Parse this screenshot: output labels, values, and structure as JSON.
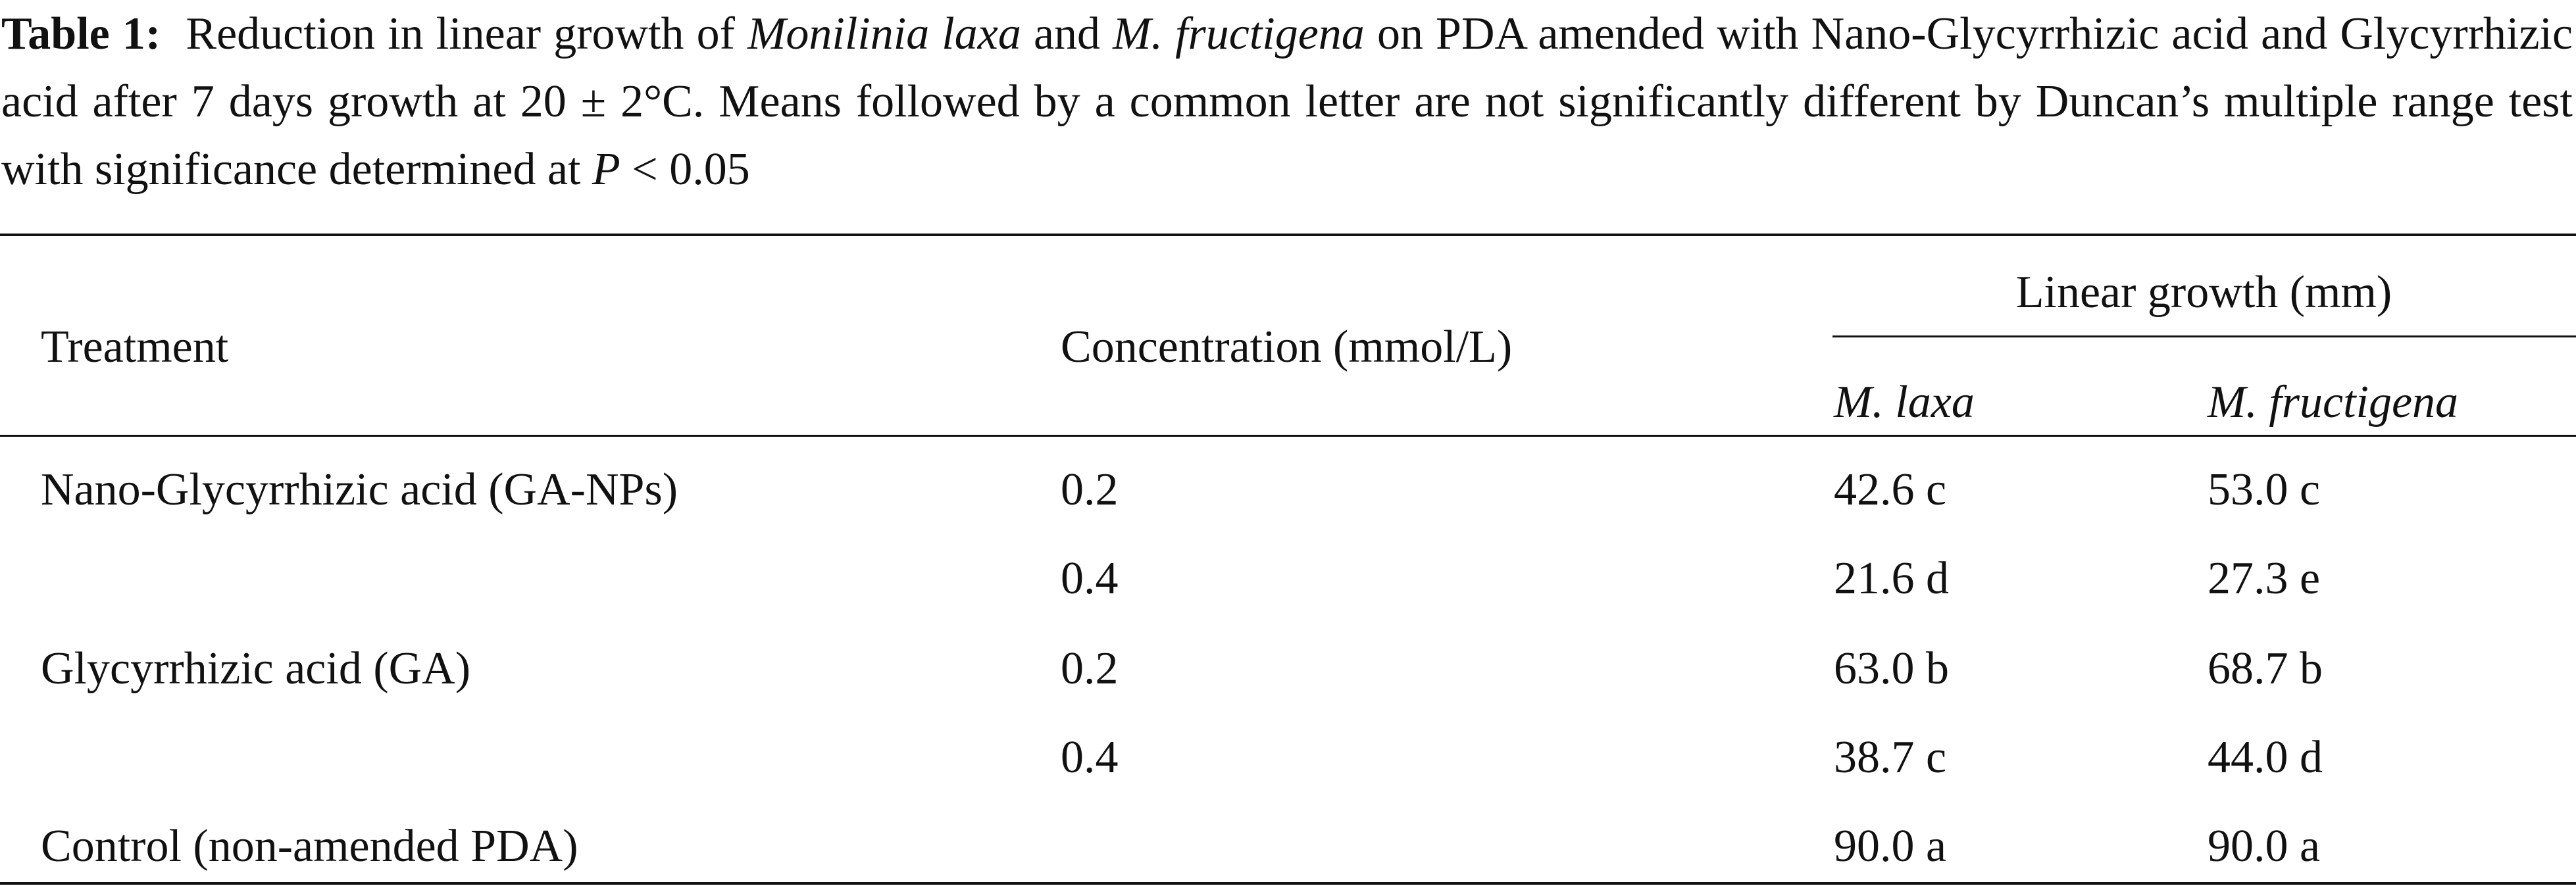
{
  "caption": {
    "label": "Table 1:",
    "parts": [
      "Reduction in linear growth of",
      "Monilinia laxa",
      "and",
      "M. fructigena",
      "on PDA amended with Nano-Glycyrrhizic acid and Glycyrrhizic acid after 7 days growth at 20 ± 2°C. Means followed by a common letter are not significantly different by Duncan’s multiple range test with significance determined at",
      "P",
      "< 0.05"
    ]
  },
  "table": {
    "header": {
      "treatment": "Treatment",
      "concentration": "Concentration (mmol/L)",
      "group": "Linear growth (mm)",
      "laxa": "M. laxa",
      "fructigena": "M. fructigena"
    },
    "rows": [
      {
        "treatment": "Nano-Glycyrrhizic acid (GA-NPs)",
        "concentration": "0.2",
        "laxa": "42.6 c",
        "fructigena": "53.0 c"
      },
      {
        "concentration": "0.4",
        "laxa": "21.6 d",
        "fructigena": "27.3 e"
      },
      {
        "treatment": "Glycyrrhizic acid (GA)",
        "concentration": "0.2",
        "laxa": "63.0 b",
        "fructigena": "68.7 b"
      },
      {
        "concentration": "0.4",
        "laxa": "38.7 c",
        "fructigena": "44.0 d"
      },
      {
        "treatment": "Control (non-amended PDA)",
        "laxa": "90.0 a",
        "fructigena": "90.0 a"
      }
    ]
  }
}
